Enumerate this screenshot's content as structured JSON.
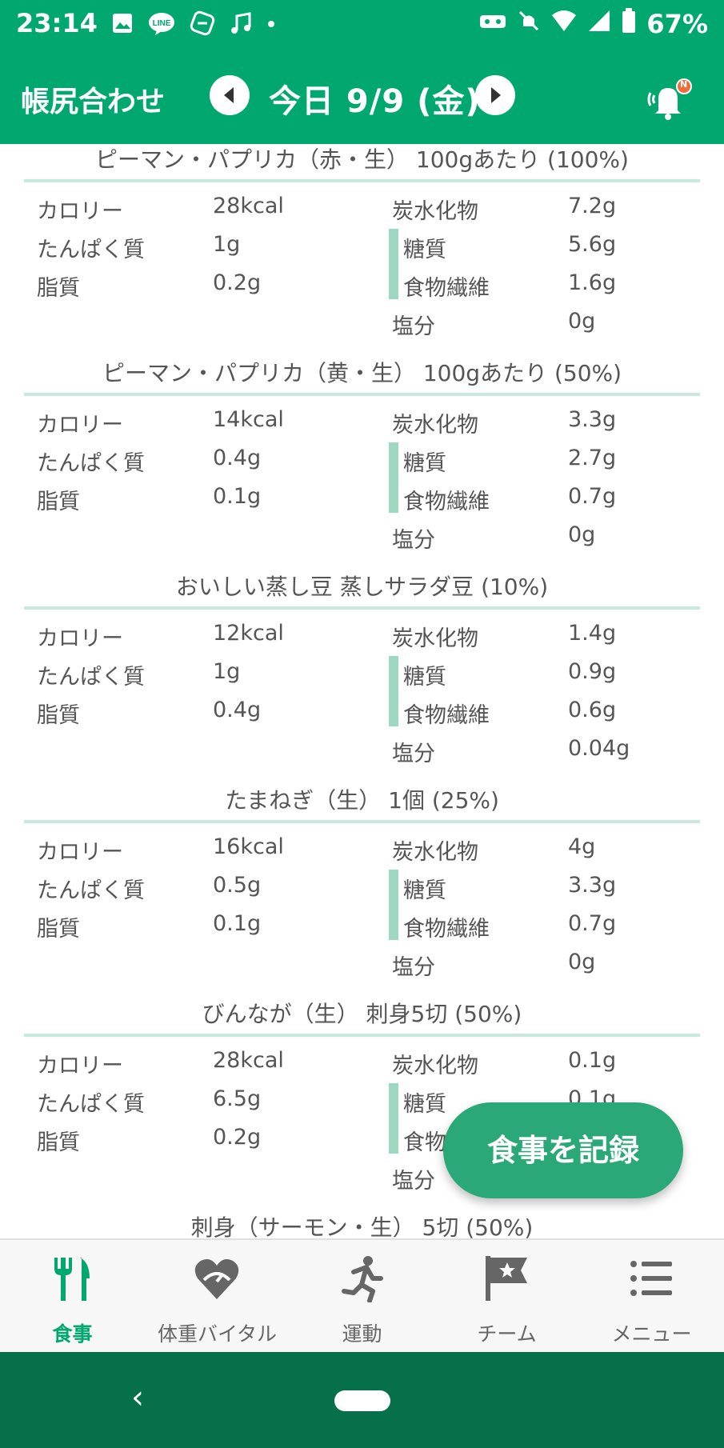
{
  "status": {
    "time": "23:14",
    "battery": "67%"
  },
  "header": {
    "title": "帳尻合わせ",
    "date": "今日 9/9 (金)",
    "badge": "N"
  },
  "labels": {
    "calories": "カロリー",
    "protein": "たんぱく質",
    "fat": "脂質",
    "carbs": "炭水化物",
    "sugar": "糖質",
    "fiber": "食物繊維",
    "salt": "塩分"
  },
  "foods": [
    {
      "title": "ピーマン・パプリカ（赤・生） 100gあたり (100%)",
      "calories": "28kcal",
      "protein": "1g",
      "fat": "0.2g",
      "carbs": "7.2g",
      "sugar": "5.6g",
      "fiber": "1.6g",
      "salt": "0g"
    },
    {
      "title": "ピーマン・パプリカ（黄・生） 100gあたり (50%)",
      "calories": "14kcal",
      "protein": "0.4g",
      "fat": "0.1g",
      "carbs": "3.3g",
      "sugar": "2.7g",
      "fiber": "0.7g",
      "salt": "0g"
    },
    {
      "title": "おいしい蒸し豆 蒸しサラダ豆 (10%)",
      "calories": "12kcal",
      "protein": "1g",
      "fat": "0.4g",
      "carbs": "1.4g",
      "sugar": "0.9g",
      "fiber": "0.6g",
      "salt": "0.04g"
    },
    {
      "title": "たまねぎ（生） 1個 (25%)",
      "calories": "16kcal",
      "protein": "0.5g",
      "fat": "0.1g",
      "carbs": "4g",
      "sugar": "3.3g",
      "fiber": "0.7g",
      "salt": "0g"
    },
    {
      "title": "びんなが（生） 刺身5切 (50%)",
      "calories": "28kcal",
      "protein": "6.5g",
      "fat": "0.2g",
      "carbs": "0.1g",
      "sugar": "0.1g",
      "fiber": "",
      "salt": ""
    },
    {
      "title": "刺身（サーモン・生） 5切 (50%)",
      "calories": "",
      "protein": "",
      "fat": "",
      "carbs": "",
      "sugar": "",
      "fiber": "",
      "salt": ""
    }
  ],
  "fab": {
    "label": "食事を記録"
  },
  "bottom_nav": [
    {
      "label": "食事",
      "icon": "fork-knife-icon",
      "active": true
    },
    {
      "label": "体重バイタル",
      "icon": "heart-scale-icon",
      "active": false
    },
    {
      "label": "運動",
      "icon": "runner-icon",
      "active": false
    },
    {
      "label": "チーム",
      "icon": "flag-star-icon",
      "active": false
    },
    {
      "label": "メニュー",
      "icon": "list-icon",
      "active": false
    }
  ],
  "colors": {
    "brand": "#00a870",
    "accent_bar": "#9ed8c0",
    "fab": "#2aa878",
    "system_nav": "#06704b"
  }
}
